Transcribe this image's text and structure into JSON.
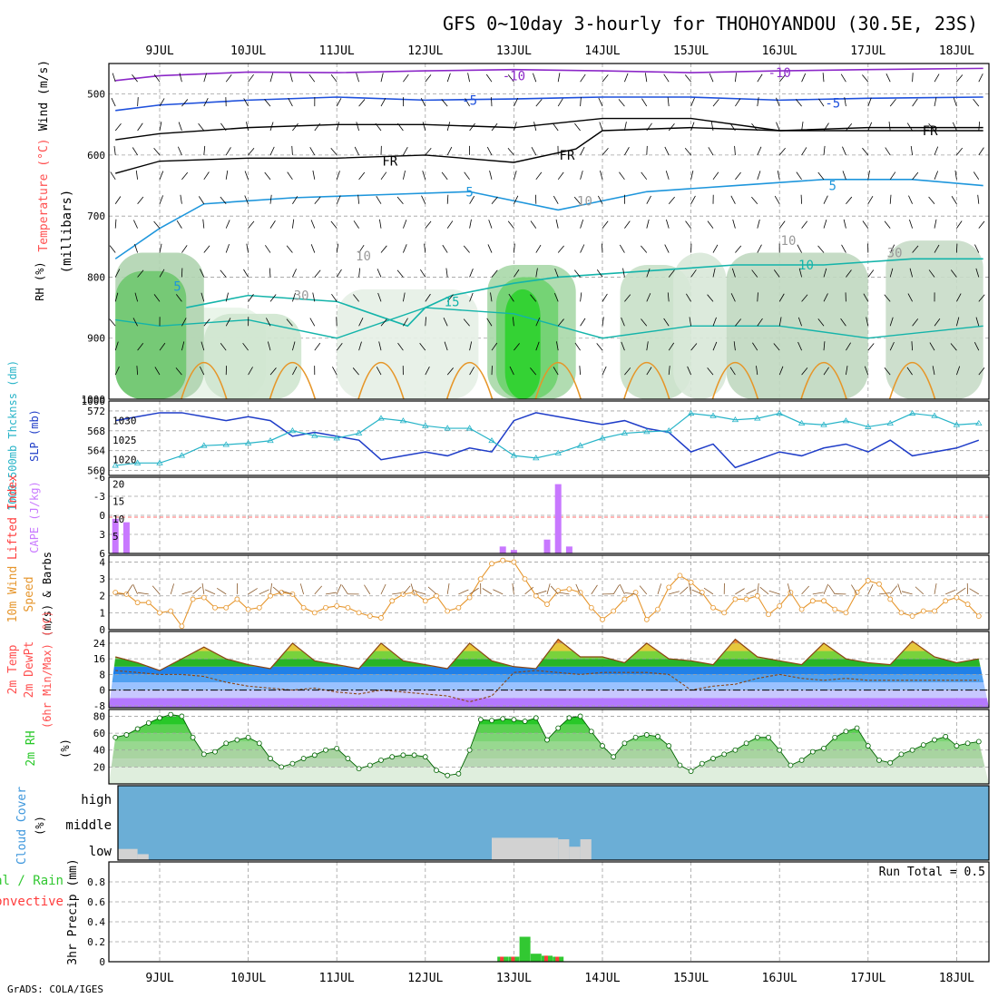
{
  "title": "GFS 0~10day 3-hourly for THOHOYANDOU (30.5E, 23S)",
  "footer": "GrADS: COLA/IGES",
  "dates": [
    "9JUL",
    "10JUL",
    "11JUL",
    "12JUL",
    "13JUL",
    "14JUL",
    "15JUL",
    "16JUL",
    "17JUL",
    "18JUL"
  ],
  "colors": {
    "wind_label": "#3c3cff",
    "temp_label": "#ff5050",
    "rh_label": "#32c832",
    "frame": "#000000",
    "grid": "#a0a0a0",
    "slp": "#1e3cc8",
    "thickness": "#28b4c8",
    "cape": "#c878ff",
    "lifted": "#ff3c3c",
    "wind10": "#e6962d",
    "rh2m": "#28c828",
    "cloud": "#6baed6",
    "cloud_low": "#d2d2d2",
    "precip_total": "#32c832",
    "precip_conv": "#ff3c3c"
  },
  "panels": {
    "upper": {
      "ylabel_wind": "Wind (m/s)",
      "ylabel_temp": "Temperature (°C)",
      "ylabel_rh": "RH (%)",
      "ylabel_pressure": "(millibars)",
      "yticks": [
        500,
        600,
        700,
        800,
        900,
        1000
      ],
      "contour_labels": [
        {
          "text": "-10",
          "color": "#8c28c8",
          "x": 4.0,
          "p": 470
        },
        {
          "text": "-10",
          "color": "#8c28c8",
          "x": 7.0,
          "p": 465
        },
        {
          "text": "-5",
          "color": "#1e50dc",
          "x": 3.5,
          "p": 510
        },
        {
          "text": "-5",
          "color": "#1e50dc",
          "x": 7.6,
          "p": 515
        },
        {
          "text": "FR",
          "color": "#000000",
          "x": 2.6,
          "p": 610
        },
        {
          "text": "FR",
          "color": "#000000",
          "x": 4.6,
          "p": 600
        },
        {
          "text": "FR",
          "color": "#000000",
          "x": 8.7,
          "p": 560
        },
        {
          "text": "5",
          "color": "#1e96dc",
          "x": 3.5,
          "p": 660
        },
        {
          "text": "5",
          "color": "#1e96dc",
          "x": 7.6,
          "p": 650
        },
        {
          "text": "5",
          "color": "#1e96dc",
          "x": 0.2,
          "p": 815
        },
        {
          "text": "10",
          "color": "#14b4aa",
          "x": 7.3,
          "p": 780
        },
        {
          "text": "15",
          "color": "#14b4aa",
          "x": 3.3,
          "p": 840
        },
        {
          "text": "10",
          "color": "#999999",
          "x": 4.8,
          "p": 675
        },
        {
          "text": "10",
          "color": "#999999",
          "x": 2.3,
          "p": 765
        },
        {
          "text": "10",
          "color": "#999999",
          "x": 7.1,
          "p": 740
        },
        {
          "text": "30",
          "color": "#999999",
          "x": 8.3,
          "p": 760
        },
        {
          "text": "30",
          "color": "#999999",
          "x": 1.6,
          "p": 830
        }
      ]
    },
    "slp": {
      "ylabel_thick": "1000-500mb Thcknss (dm)",
      "ylabel_slp": "SLP (mb)",
      "left_ticks": [
        "572",
        "568",
        "564",
        "560"
      ],
      "right_ticks": [
        "1030",
        "1025",
        "1020"
      ],
      "top_label": "1000"
    },
    "cape": {
      "ylabel_li": "Lifted Index",
      "ylabel_cape": "CAPE (J/kg)",
      "left_ticks": [
        "-6",
        "-3",
        "0",
        "3",
        "6"
      ],
      "right_ticks": [
        "20",
        "15",
        "10",
        "5"
      ]
    },
    "wind10": {
      "ylabel": "10m Wind",
      "ylabel2": "Speed",
      "ylabel3": "(m/s) & Barbs",
      "ticks": [
        "4",
        "3",
        "2",
        "1",
        "0"
      ]
    },
    "temp2m": {
      "ylabel": "2m Temp",
      "ylabel2": "2m DewPt",
      "ylabel3": "(6hr Min/Max) (°C)",
      "ticks": [
        "24",
        "16",
        "8",
        "0",
        "-8"
      ]
    },
    "rh2m": {
      "ylabel": "2m RH",
      "ylabel2": "(%)",
      "ticks": [
        "80",
        "60",
        "40",
        "20"
      ]
    },
    "cloud": {
      "ylabel": "Cloud Cover",
      "ylabel2": "(%)",
      "levels": [
        "high",
        "middle",
        "low"
      ]
    },
    "precip": {
      "ylabel_total": "Total / Rain",
      "ylabel_conv": "Convective",
      "ylabel": "3hr Precip (mm)",
      "ticks": [
        "0.8",
        "0.6",
        "0.4",
        "0.2",
        "0"
      ],
      "run_total": "Run Total = 0.5"
    }
  },
  "chart_data": [
    {
      "type": "line",
      "title": "SLP (mb)",
      "x_unit": "days from 9JUL 00Z",
      "series": [
        {
          "name": "SLP (mb)",
          "x": [
            -0.5,
            -0.25,
            0,
            0.25,
            0.5,
            0.75,
            1,
            1.25,
            1.5,
            1.75,
            2,
            2.25,
            2.5,
            2.75,
            3,
            3.25,
            3.5,
            3.75,
            4,
            4.25,
            4.5,
            4.75,
            5,
            5.25,
            5.5,
            5.75,
            6,
            6.25,
            6.5,
            6.75,
            7,
            7.25,
            7.5,
            7.75,
            8,
            8.25,
            8.5,
            8.75,
            9,
            9.25
          ],
          "values": [
            1030,
            1031,
            1032,
            1032,
            1031,
            1030,
            1031,
            1030,
            1026,
            1027,
            1026,
            1025,
            1020,
            1021,
            1022,
            1021,
            1023,
            1022,
            1030,
            1032,
            1031,
            1030,
            1029,
            1030,
            1028,
            1027,
            1022,
            1024,
            1018,
            1020,
            1022,
            1021,
            1023,
            1024,
            1022,
            1025,
            1021,
            1022,
            1023,
            1025
          ]
        },
        {
          "name": "1000-500mb Thickness (dm)",
          "x": [
            -0.5,
            -0.25,
            0,
            0.25,
            0.5,
            0.75,
            1,
            1.25,
            1.5,
            1.75,
            2,
            2.25,
            2.5,
            2.75,
            3,
            3.25,
            3.5,
            3.75,
            4,
            4.25,
            4.5,
            4.75,
            5,
            5.25,
            5.5,
            5.75,
            6,
            6.25,
            6.5,
            6.75,
            7,
            7.25,
            7.5,
            7.75,
            8,
            8.25,
            8.5,
            8.75,
            9,
            9.25
          ],
          "values": [
            561,
            561.5,
            561.5,
            563,
            565,
            565.2,
            565.5,
            566,
            568,
            567,
            566.5,
            567.5,
            570.5,
            570,
            569,
            568.5,
            568.5,
            566,
            563,
            562.5,
            563.5,
            565,
            566.5,
            567.5,
            567.8,
            568,
            571.5,
            571,
            570.2,
            570.5,
            571.5,
            569.5,
            569.2,
            570,
            568.8,
            569.5,
            571.5,
            571,
            569.2,
            569.5
          ]
        }
      ]
    },
    {
      "type": "bar",
      "title": "CAPE (J/kg)",
      "x_unit": "days from 9JUL 00Z",
      "x": [
        -0.5,
        -0.375,
        3.875,
        4.0,
        4.375,
        4.5,
        4.625
      ],
      "values": [
        10,
        9,
        2,
        1,
        4,
        20,
        2
      ]
    },
    {
      "type": "line",
      "title": "10m Wind Speed (m/s)",
      "x_unit": "days from 9JUL 00Z",
      "x": [
        -0.5,
        -0.375,
        -0.25,
        -0.125,
        0,
        0.125,
        0.25,
        0.375,
        0.5,
        0.625,
        0.75,
        0.875,
        1,
        1.125,
        1.25,
        1.375,
        1.5,
        1.625,
        1.75,
        1.875,
        2,
        2.125,
        2.25,
        2.375,
        2.5,
        2.625,
        2.75,
        2.875,
        3,
        3.125,
        3.25,
        3.375,
        3.5,
        3.625,
        3.75,
        3.875,
        4,
        4.125,
        4.25,
        4.375,
        4.5,
        4.625,
        4.75,
        4.875,
        5,
        5.125,
        5.25,
        5.375,
        5.5,
        5.625,
        5.75,
        5.875,
        6,
        6.125,
        6.25,
        6.375,
        6.5,
        6.625,
        6.75,
        6.875,
        7,
        7.125,
        7.25,
        7.375,
        7.5,
        7.625,
        7.75,
        7.875,
        8,
        8.125,
        8.25,
        8.375,
        8.5,
        8.625,
        8.75,
        8.875,
        9,
        9.125,
        9.25
      ],
      "values": [
        2.2,
        2.1,
        1.6,
        1.6,
        1.0,
        1.1,
        0.2,
        1.8,
        1.9,
        1.3,
        1.3,
        1.8,
        1.2,
        1.3,
        2.0,
        2.2,
        2.1,
        1.3,
        1.0,
        1.3,
        1.4,
        1.3,
        1.0,
        0.8,
        0.7,
        1.7,
        2.1,
        2.2,
        1.7,
        2.0,
        1.1,
        1.3,
        1.9,
        3.0,
        3.9,
        4.1,
        4.0,
        3.0,
        2.0,
        1.5,
        2.3,
        2.4,
        2.2,
        1.3,
        0.6,
        1.1,
        1.8,
        2.2,
        0.6,
        1.2,
        2.5,
        3.2,
        2.8,
        2.2,
        1.3,
        1.0,
        1.8,
        1.8,
        2.0,
        0.9,
        1.4,
        2.2,
        1.2,
        1.7,
        1.7,
        1.2,
        1.0,
        2.2,
        2.9,
        2.7,
        1.8,
        1.0,
        0.8,
        1.1,
        1.1,
        1.7,
        1.9,
        1.5,
        0.8
      ]
    },
    {
      "type": "area",
      "title": "2m Temp (°C)",
      "x_unit": "days from 9JUL 00Z",
      "series": [
        {
          "name": "2m Temp",
          "x": [
            -0.5,
            -0.25,
            0,
            0.25,
            0.5,
            0.75,
            1,
            1.25,
            1.5,
            1.75,
            2,
            2.25,
            2.5,
            2.75,
            3,
            3.25,
            3.5,
            3.75,
            4,
            4.25,
            4.5,
            4.75,
            5,
            5.25,
            5.5,
            5.75,
            6,
            6.25,
            6.5,
            6.75,
            7,
            7.25,
            7.5,
            7.75,
            8,
            8.25,
            8.5,
            8.75,
            9,
            9.25
          ],
          "values": [
            17,
            14,
            10,
            16,
            22,
            16,
            13,
            11,
            24,
            15,
            13,
            11,
            24,
            15,
            13,
            11,
            24,
            15,
            12,
            11,
            26,
            17,
            17,
            14,
            24,
            16,
            15,
            13,
            26,
            17,
            15,
            13,
            24,
            16,
            14,
            13,
            25,
            17,
            14,
            16
          ]
        },
        {
          "name": "2m DewPt",
          "x": [
            -0.5,
            -0.25,
            0,
            0.25,
            0.5,
            0.75,
            1,
            1.25,
            1.5,
            1.75,
            2,
            2.25,
            2.5,
            2.75,
            3,
            3.25,
            3.5,
            3.75,
            4,
            4.25,
            4.5,
            4.75,
            5,
            5.25,
            5.5,
            5.75,
            6,
            6.25,
            6.5,
            6.75,
            7,
            7.25,
            7.5,
            7.75,
            8,
            8.25,
            8.5,
            8.75,
            9,
            9.25
          ],
          "values": [
            10,
            9,
            8,
            8,
            7,
            4,
            2,
            1,
            0,
            1,
            -1,
            -2,
            0,
            -1,
            -2,
            -3,
            -6,
            -3,
            9,
            10,
            9,
            8,
            9,
            9,
            9,
            8,
            0,
            2,
            3,
            6,
            8,
            6,
            5,
            6,
            5,
            5,
            5,
            5,
            5,
            5
          ]
        }
      ]
    },
    {
      "type": "line",
      "title": "2m RH (%)",
      "x_unit": "days from 9JUL 00Z",
      "x": [
        -0.5,
        -0.375,
        -0.25,
        -0.125,
        0,
        0.125,
        0.25,
        0.375,
        0.5,
        0.625,
        0.75,
        0.875,
        1,
        1.125,
        1.25,
        1.375,
        1.5,
        1.625,
        1.75,
        1.875,
        2,
        2.125,
        2.25,
        2.375,
        2.5,
        2.625,
        2.75,
        2.875,
        3,
        3.125,
        3.25,
        3.375,
        3.5,
        3.625,
        3.75,
        3.875,
        4,
        4.125,
        4.25,
        4.375,
        4.5,
        4.625,
        4.75,
        4.875,
        5,
        5.125,
        5.25,
        5.375,
        5.5,
        5.625,
        5.75,
        5.875,
        6,
        6.125,
        6.25,
        6.375,
        6.5,
        6.625,
        6.75,
        6.875,
        7,
        7.125,
        7.25,
        7.375,
        7.5,
        7.625,
        7.75,
        7.875,
        8,
        8.125,
        8.25,
        8.375,
        8.5,
        8.625,
        8.75,
        8.875,
        9,
        9.125,
        9.25
      ],
      "values": [
        55,
        58,
        65,
        72,
        78,
        82,
        80,
        55,
        35,
        38,
        48,
        52,
        55,
        48,
        30,
        20,
        24,
        30,
        34,
        40,
        42,
        30,
        18,
        22,
        28,
        32,
        34,
        34,
        32,
        16,
        10,
        12,
        40,
        76,
        75,
        77,
        76,
        74,
        78,
        52,
        66,
        78,
        80,
        62,
        45,
        32,
        48,
        55,
        58,
        56,
        45,
        22,
        15,
        24,
        30,
        35,
        40,
        48,
        55,
        55,
        40,
        22,
        28,
        38,
        42,
        55,
        62,
        66,
        45,
        28,
        25,
        35,
        40,
        46,
        52,
        56,
        45,
        48,
        50
      ]
    },
    {
      "type": "area",
      "title": "Cloud Cover (%)",
      "x_unit": "days from 9JUL 00Z",
      "series": [
        {
          "name": "high",
          "x": [
            -0.5,
            9.25
          ],
          "values": [
            100,
            100
          ]
        },
        {
          "name": "middle",
          "x": [
            -0.5,
            9.25
          ],
          "values": [
            100,
            100
          ]
        },
        {
          "name": "low",
          "x": [
            -0.5,
            -0.25,
            -0.125,
            3.75,
            4.5,
            4.625,
            4.75,
            4.875
          ],
          "values": [
            40,
            15,
            0,
            40,
            40,
            35,
            40,
            0
          ]
        }
      ]
    },
    {
      "type": "bar",
      "title": "3hr Precip (mm)",
      "x_unit": "days from 9JUL 00Z",
      "series": [
        {
          "name": "Total / Rain",
          "x": [
            3.875,
            4.0,
            4.125,
            4.25,
            4.375,
            4.5
          ],
          "values": [
            0.05,
            0.05,
            0.25,
            0.08,
            0.06,
            0.05
          ]
        },
        {
          "name": "Convective",
          "x": [
            3.875,
            4.0,
            4.125,
            4.25,
            4.375,
            4.5
          ],
          "values": [
            0.05,
            0.05,
            0,
            0,
            0.06,
            0.05
          ]
        }
      ],
      "ylim": [
        0,
        1.0
      ]
    }
  ]
}
